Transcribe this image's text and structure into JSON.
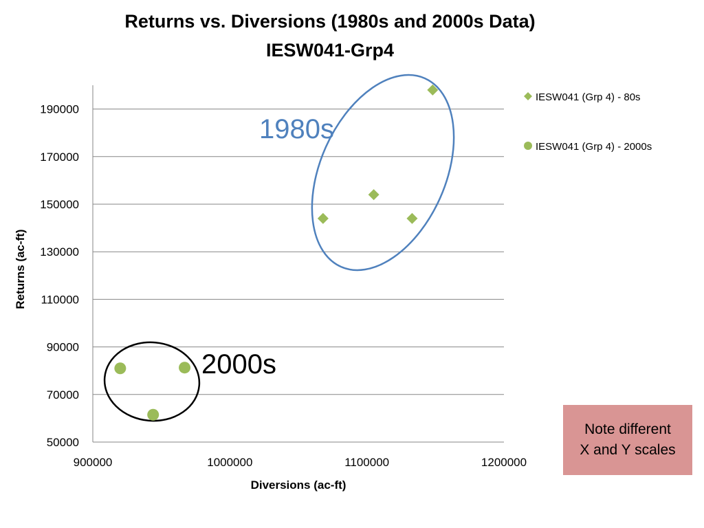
{
  "chart_data": {
    "type": "scatter",
    "title": "Returns vs. Diversions (1980s and 2000s Data)",
    "subtitle": "IESW041-Grp4",
    "xlabel": "Diversions (ac-ft)",
    "ylabel": "Returns  (ac-ft)",
    "xlim": [
      900000,
      1200000
    ],
    "ylim": [
      50000,
      200000
    ],
    "x_ticks": [
      900000,
      1000000,
      1100000,
      1200000
    ],
    "y_ticks": [
      50000,
      70000,
      90000,
      110000,
      130000,
      150000,
      170000,
      190000
    ],
    "grid": "horizontal",
    "legend_position": "right",
    "series": [
      {
        "name": "IESW041 (Grp 4) - 80s",
        "marker": "diamond",
        "color": "#9bbb59",
        "points": [
          {
            "x": 1068000,
            "y": 144000
          },
          {
            "x": 1105000,
            "y": 154000
          },
          {
            "x": 1133000,
            "y": 144000
          },
          {
            "x": 1148000,
            "y": 198000
          }
        ]
      },
      {
        "name": "IESW041 (Grp 4) - 2000s",
        "marker": "circle",
        "color": "#9bbb59",
        "points": [
          {
            "x": 920000,
            "y": 81000
          },
          {
            "x": 944000,
            "y": 61500
          },
          {
            "x": 967000,
            "y": 81300
          }
        ]
      }
    ],
    "annotations": [
      {
        "text": "1980s",
        "color": "#4f81bd",
        "encloses_series": 0
      },
      {
        "text": "2000s",
        "color": "#000000",
        "encloses_series": 1
      }
    ],
    "note": "Note  different\nX and Y scales",
    "note_color": "#d99594"
  }
}
